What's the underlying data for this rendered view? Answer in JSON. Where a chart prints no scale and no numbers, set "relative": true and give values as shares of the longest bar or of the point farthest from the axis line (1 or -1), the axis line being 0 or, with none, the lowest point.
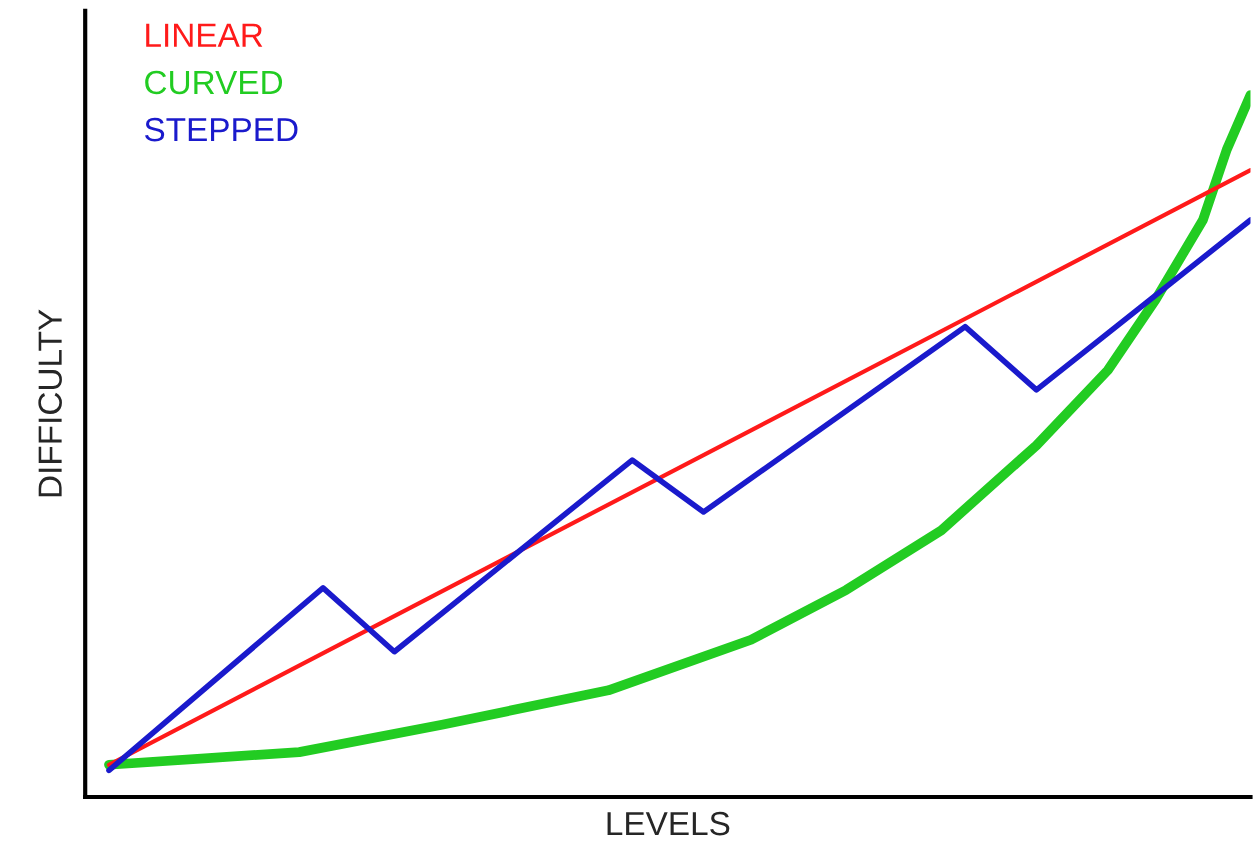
{
  "chart_data": {
    "type": "line",
    "relative": true,
    "xlabel": "LEVELS",
    "ylabel": "DIFFICULTY",
    "categories": [
      null,
      null,
      null,
      null,
      null,
      null,
      null,
      null,
      null,
      null,
      null,
      null,
      null,
      null,
      null,
      null,
      null,
      null,
      null,
      null,
      null,
      null,
      null,
      null,
      null,
      null,
      null,
      null,
      null,
      null,
      null,
      null,
      null,
      null,
      null,
      null,
      null,
      null,
      null,
      null,
      null,
      null,
      null,
      null,
      null,
      null,
      null,
      null,
      null
    ],
    "series": [
      {
        "name": "LINEAR",
        "color": "#ff1a1a",
        "values": [
          0.046,
          null,
          null,
          null,
          null,
          null,
          null,
          null,
          null,
          null,
          null,
          null,
          null,
          null,
          null,
          null,
          null,
          null,
          null,
          null,
          null,
          null,
          null,
          null,
          null,
          null,
          null,
          null,
          null,
          null,
          null,
          null,
          null,
          null,
          null,
          null,
          null,
          null,
          null,
          null,
          null,
          null,
          null,
          null,
          null,
          null,
          null,
          null,
          0.893
        ]
      },
      {
        "name": "CURVED",
        "color": "#22cc22",
        "values": [
          0.046,
          null,
          null,
          null,
          null,
          null,
          null,
          null,
          0.064,
          null,
          null,
          null,
          null,
          null,
          0.103,
          null,
          null,
          null,
          null,
          null,
          null,
          0.152,
          null,
          null,
          null,
          null,
          null,
          0.224,
          null,
          null,
          null,
          0.295,
          null,
          null,
          null,
          0.38,
          null,
          null,
          null,
          0.501,
          null,
          null,
          0.608,
          null,
          0.708,
          null,
          0.822,
          0.922,
          1.0
        ]
      },
      {
        "name": "STEPPED",
        "color": "#1a1acc",
        "values": [
          0.038,
          null,
          null,
          null,
          null,
          null,
          null,
          null,
          null,
          0.298,
          null,
          null,
          0.207,
          null,
          null,
          null,
          null,
          null,
          null,
          null,
          null,
          null,
          0.48,
          null,
          null,
          0.406,
          null,
          null,
          null,
          null,
          null,
          null,
          null,
          null,
          null,
          null,
          0.67,
          null,
          null,
          0.58,
          null,
          null,
          null,
          null,
          null,
          null,
          null,
          null,
          0.822
        ]
      }
    ]
  }
}
